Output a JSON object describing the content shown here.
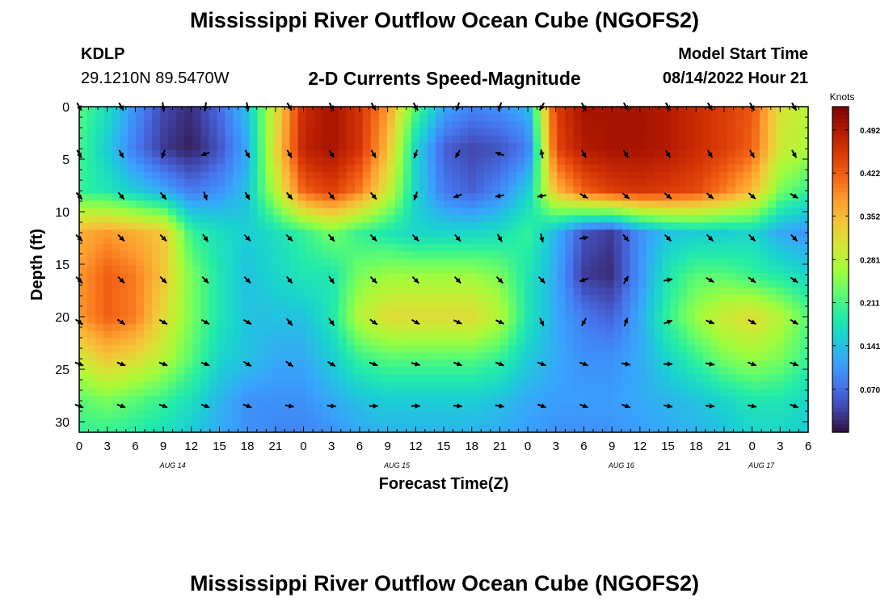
{
  "header": {
    "title": "Mississippi River Outflow Ocean Cube (NGOFS2)",
    "station_id": "KDLP",
    "station_coords": "29.1210N  89.5470W",
    "subtitle": "2-D Currents Speed-Magnitude",
    "model_start_label": "Model Start Time",
    "model_start_time": "08/14/2022 Hour 21"
  },
  "footer": {
    "title": "Mississippi River Outflow Ocean Cube (NGOFS2)"
  },
  "colors": {
    "colormap": [
      "#30123b",
      "#4145ab",
      "#4675ed",
      "#39a2fc",
      "#1bcfd4",
      "#24eca6",
      "#61fc6c",
      "#a4fc3b",
      "#d1e834",
      "#f3c63a",
      "#fe9b2d",
      "#f36315",
      "#d93806",
      "#b11901",
      "#7a0402"
    ]
  },
  "chart_data": {
    "type": "heatmap",
    "xlabel": "Forecast Time(Z)",
    "ylabel": "Depth (ft)",
    "colorbar_label": "Knots",
    "colorbar_ticks": [
      "0.070",
      "0.141",
      "0.211",
      "0.281",
      "0.352",
      "0.422",
      "0.492"
    ],
    "colorbar_tick_values": [
      0.07,
      0.141,
      0.211,
      0.281,
      0.352,
      0.422,
      0.492
    ],
    "value_range": [
      0.0,
      0.53
    ],
    "x_range": [
      0,
      78
    ],
    "x_tick_labels": [
      "0",
      "3",
      "6",
      "9",
      "12",
      "15",
      "18",
      "21",
      "0",
      "3",
      "6",
      "9",
      "12",
      "15",
      "18",
      "21",
      "0",
      "3",
      "6",
      "9",
      "12",
      "15",
      "18",
      "21",
      "0",
      "3",
      "6"
    ],
    "x_tick_hours": [
      0,
      3,
      6,
      9,
      12,
      15,
      18,
      21,
      24,
      27,
      30,
      33,
      36,
      39,
      42,
      45,
      48,
      51,
      54,
      57,
      60,
      63,
      66,
      69,
      72,
      75,
      78
    ],
    "date_labels": [
      "AUG 14",
      "AUG 15",
      "AUG 16",
      "AUG 17"
    ],
    "date_label_hours": [
      10,
      34,
      58,
      73
    ],
    "y_range": [
      0,
      31
    ],
    "y_tick_labels": [
      "0",
      "5",
      "10",
      "15",
      "20",
      "25",
      "30"
    ],
    "y_tick_values": [
      0,
      5,
      10,
      15,
      20,
      25,
      30
    ],
    "speed_field": {
      "times": [
        0,
        3,
        6,
        9,
        12,
        15,
        18,
        21,
        24,
        27,
        30,
        33,
        36,
        39,
        42,
        45,
        48,
        51,
        54,
        57,
        60,
        63,
        66,
        69,
        72,
        75,
        78
      ],
      "depths": [
        0,
        4,
        8,
        12,
        16,
        20,
        24,
        28,
        31
      ],
      "speeds": [
        [
          0.22,
          0.17,
          0.1,
          0.04,
          0.02,
          0.07,
          0.14,
          0.31,
          0.47,
          0.5,
          0.46,
          0.38,
          0.22,
          0.12,
          0.09,
          0.1,
          0.13,
          0.45,
          0.5,
          0.5,
          0.5,
          0.49,
          0.47,
          0.45,
          0.43,
          0.31,
          0.28
        ],
        [
          0.21,
          0.15,
          0.08,
          0.03,
          0.01,
          0.05,
          0.12,
          0.32,
          0.48,
          0.5,
          0.46,
          0.35,
          0.16,
          0.06,
          0.04,
          0.05,
          0.08,
          0.44,
          0.49,
          0.5,
          0.5,
          0.49,
          0.47,
          0.45,
          0.42,
          0.3,
          0.27
        ],
        [
          0.2,
          0.18,
          0.15,
          0.12,
          0.08,
          0.1,
          0.14,
          0.28,
          0.42,
          0.45,
          0.4,
          0.3,
          0.16,
          0.08,
          0.06,
          0.09,
          0.15,
          0.35,
          0.42,
          0.45,
          0.46,
          0.45,
          0.44,
          0.4,
          0.35,
          0.24,
          0.2
        ],
        [
          0.36,
          0.38,
          0.36,
          0.34,
          0.2,
          0.17,
          0.15,
          0.17,
          0.2,
          0.24,
          0.2,
          0.18,
          0.16,
          0.16,
          0.16,
          0.17,
          0.2,
          0.13,
          0.05,
          0.03,
          0.1,
          0.14,
          0.15,
          0.15,
          0.16,
          0.12,
          0.1
        ],
        [
          0.38,
          0.42,
          0.4,
          0.34,
          0.24,
          0.18,
          0.14,
          0.16,
          0.18,
          0.18,
          0.24,
          0.26,
          0.26,
          0.26,
          0.26,
          0.24,
          0.18,
          0.12,
          0.03,
          0.02,
          0.1,
          0.18,
          0.22,
          0.22,
          0.2,
          0.18,
          0.16
        ],
        [
          0.38,
          0.42,
          0.4,
          0.32,
          0.24,
          0.18,
          0.14,
          0.14,
          0.14,
          0.18,
          0.28,
          0.32,
          0.32,
          0.32,
          0.32,
          0.28,
          0.18,
          0.12,
          0.08,
          0.06,
          0.12,
          0.2,
          0.26,
          0.3,
          0.32,
          0.28,
          0.22
        ],
        [
          0.3,
          0.34,
          0.32,
          0.28,
          0.22,
          0.16,
          0.14,
          0.12,
          0.12,
          0.15,
          0.2,
          0.22,
          0.22,
          0.22,
          0.22,
          0.2,
          0.15,
          0.12,
          0.1,
          0.1,
          0.12,
          0.16,
          0.2,
          0.24,
          0.26,
          0.24,
          0.2
        ],
        [
          0.22,
          0.24,
          0.22,
          0.2,
          0.17,
          0.13,
          0.1,
          0.1,
          0.1,
          0.12,
          0.14,
          0.15,
          0.15,
          0.15,
          0.15,
          0.14,
          0.12,
          0.11,
          0.11,
          0.11,
          0.12,
          0.13,
          0.14,
          0.16,
          0.18,
          0.18,
          0.16
        ],
        [
          0.2,
          0.2,
          0.19,
          0.17,
          0.15,
          0.12,
          0.1,
          0.09,
          0.09,
          0.1,
          0.12,
          0.13,
          0.13,
          0.13,
          0.13,
          0.12,
          0.11,
          0.1,
          0.1,
          0.1,
          0.11,
          0.12,
          0.13,
          0.14,
          0.16,
          0.16,
          0.15
        ]
      ]
    },
    "vectors": {
      "times": [
        0,
        4.5,
        9,
        13.5,
        18,
        22.5,
        27,
        31.5,
        36,
        40.5,
        45,
        49.5,
        54,
        58.5,
        63,
        67.5,
        72,
        76.5
      ],
      "depths": [
        0,
        4.5,
        8.5,
        12.5,
        16.5,
        20.5,
        24.5,
        28.5
      ],
      "directions_deg": [
        [
          150,
          150,
          170,
          190,
          170,
          150,
          150,
          150,
          150,
          200,
          200,
          210,
          150,
          150,
          150,
          150,
          150,
          150
        ],
        [
          150,
          150,
          200,
          250,
          150,
          150,
          150,
          150,
          200,
          210,
          290,
          350,
          150,
          150,
          150,
          150,
          150,
          150
        ],
        [
          140,
          140,
          140,
          160,
          150,
          140,
          140,
          140,
          200,
          250,
          260,
          260,
          120,
          130,
          130,
          130,
          130,
          120
        ],
        [
          135,
          135,
          135,
          145,
          135,
          135,
          140,
          135,
          135,
          140,
          150,
          165,
          80,
          140,
          135,
          135,
          135,
          135
        ],
        [
          135,
          135,
          135,
          135,
          135,
          140,
          145,
          135,
          135,
          135,
          135,
          135,
          250,
          30,
          80,
          120,
          125,
          125
        ],
        [
          125,
          125,
          120,
          120,
          120,
          140,
          145,
          125,
          120,
          115,
          115,
          155,
          210,
          20,
          70,
          110,
          120,
          120
        ],
        [
          110,
          110,
          110,
          110,
          120,
          125,
          120,
          110,
          105,
          110,
          110,
          110,
          110,
          100,
          90,
          100,
          110,
          110
        ],
        [
          110,
          110,
          110,
          110,
          110,
          100,
          95,
          90,
          90,
          95,
          100,
          110,
          110,
          110,
          100,
          95,
          100,
          110
        ]
      ]
    }
  }
}
